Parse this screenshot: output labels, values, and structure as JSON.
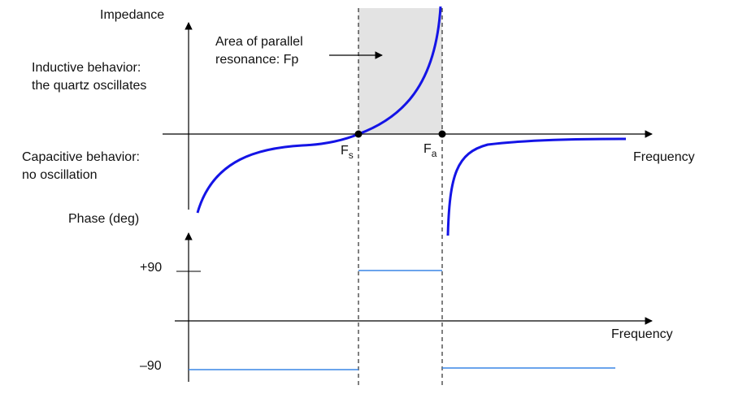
{
  "impedance_plot": {
    "y_axis_label": "Impedance",
    "x_axis_label": "Frequency",
    "inductive_label": {
      "line1": "Inductive behavior:",
      "line2": "the quartz oscillates"
    },
    "capacitive_label": {
      "line1": "Capacitive behavior:",
      "line2": "no oscillation"
    },
    "parallel_area_label": {
      "line1": "Area of parallel",
      "line2": "resonance: Fp"
    },
    "marker_fs": {
      "letter": "F",
      "sub": "s"
    },
    "marker_fa": {
      "letter": "F",
      "sub": "a"
    }
  },
  "phase_plot": {
    "y_axis_label": "Phase (deg)",
    "x_axis_label": "Frequency",
    "tick_pos": "+90",
    "tick_neg": "–90"
  },
  "colors": {
    "curve": "#1414e6",
    "phase_line": "#3a86e6",
    "shade": "#e3e3e3",
    "axis": "#000000"
  }
}
